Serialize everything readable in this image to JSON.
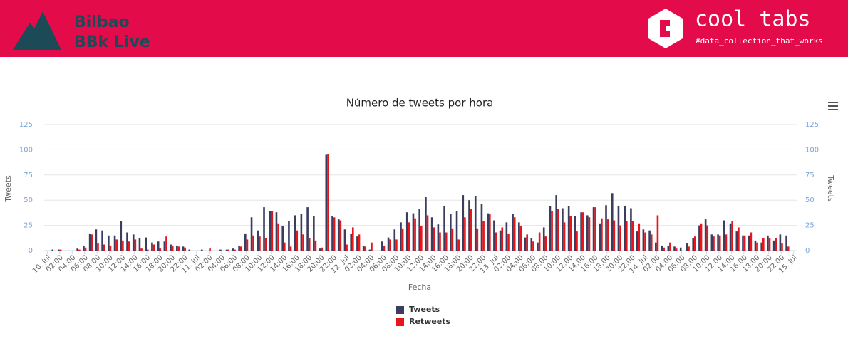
{
  "header": {
    "brand": [
      "Bilbao",
      "BBk Live"
    ],
    "product": "cool tabs",
    "tagline": "#data_collection_that_works"
  },
  "chart_data": {
    "type": "bar",
    "title": "Número de tweets por hora",
    "xlabel": "Fecha",
    "ylabel": "Tweets",
    "y2label": "Tweets",
    "categories": [
      "10. Jul",
      null,
      "02:00",
      null,
      "04:00",
      null,
      "06:00",
      null,
      "08:00",
      null,
      "10:00",
      null,
      "12:00",
      null,
      "14:00",
      null,
      "16:00",
      null,
      "18:00",
      null,
      "20:00",
      null,
      "22:00",
      null,
      "11. Jul",
      null,
      "02:00",
      null,
      "04:00",
      null,
      "06:00",
      null,
      "08:00",
      null,
      "10:00",
      null,
      "12:00",
      null,
      "14:00",
      null,
      "16:00",
      null,
      "18:00",
      null,
      "20:00",
      null,
      "22:00",
      null,
      "12. Jul",
      null,
      "02:00",
      null,
      "04:00",
      null,
      "06:00",
      null,
      "08:00",
      null,
      "10:00",
      null,
      "12:00",
      null,
      "14:00",
      null,
      "16:00",
      null,
      "18:00",
      null,
      "20:00",
      null,
      "22:00",
      null,
      "13. Jul",
      null,
      "02:00",
      null,
      "04:00",
      null,
      "06:00",
      null,
      "08:00",
      null,
      "10:00",
      null,
      "12:00",
      null,
      "14:00",
      null,
      "16:00",
      null,
      "18:00",
      null,
      "20:00",
      null,
      "22:00",
      null,
      "14. Jul",
      null,
      "02:00",
      null,
      "04:00",
      null,
      "06:00",
      null,
      "08:00",
      null,
      "10:00",
      null,
      "12:00",
      null,
      "14:00",
      null,
      "16:00",
      null,
      "18:00",
      null,
      "20:00",
      null,
      "22:00",
      null,
      "15. Jul"
    ],
    "series": [
      {
        "name": "Tweets",
        "color": "#3b3d5e",
        "values": [
          0,
          1,
          1,
          0,
          0,
          2,
          5,
          17,
          21,
          20,
          15,
          15,
          29,
          18,
          16,
          12,
          13,
          8,
          9,
          9,
          6,
          5,
          4,
          1,
          0,
          1,
          0,
          0,
          1,
          1,
          2,
          5,
          17,
          33,
          20,
          43,
          39,
          38,
          24,
          29,
          35,
          36,
          43,
          34,
          2,
          95,
          34,
          31,
          21,
          17,
          14,
          5,
          1,
          0,
          9,
          13,
          21,
          28,
          38,
          37,
          41,
          53,
          33,
          26,
          44,
          36,
          39,
          55,
          50,
          54,
          46,
          37,
          30,
          20,
          28,
          36,
          28,
          13,
          12,
          8,
          23,
          44,
          55,
          42,
          44,
          34,
          38,
          35,
          43,
          27,
          45,
          57,
          44,
          44,
          42,
          19,
          21,
          20,
          8,
          5,
          5,
          4,
          3,
          7,
          12,
          25,
          31,
          16,
          16,
          30,
          27,
          19,
          15,
          15,
          10,
          8,
          15,
          10,
          16,
          15,
          0
        ]
      },
      {
        "name": "Retweets",
        "color": "#e8161b",
        "values": [
          0,
          0,
          1,
          0,
          0,
          1,
          3,
          16,
          7,
          6,
          5,
          11,
          10,
          9,
          11,
          2,
          1,
          6,
          2,
          14,
          5,
          4,
          3,
          0,
          0,
          0,
          2,
          0,
          0,
          1,
          1,
          4,
          11,
          15,
          14,
          12,
          39,
          27,
          8,
          4,
          20,
          16,
          12,
          10,
          3,
          96,
          33,
          30,
          6,
          23,
          16,
          4,
          8,
          0,
          5,
          11,
          11,
          22,
          28,
          32,
          24,
          35,
          23,
          18,
          18,
          22,
          11,
          33,
          41,
          22,
          29,
          36,
          18,
          23,
          17,
          33,
          24,
          16,
          9,
          18,
          14,
          39,
          41,
          28,
          34,
          19,
          38,
          33,
          43,
          32,
          31,
          30,
          25,
          29,
          29,
          27,
          18,
          16,
          35,
          3,
          8,
          2,
          0,
          4,
          14,
          27,
          25,
          14,
          15,
          16,
          29,
          23,
          15,
          18,
          8,
          12,
          12,
          12,
          7,
          4,
          0
        ]
      }
    ],
    "ylim": [
      0,
      125
    ],
    "yticks": [
      0,
      25,
      50,
      75,
      100,
      125
    ],
    "y2lim": [
      0,
      125
    ],
    "y2ticks": [
      0,
      25,
      50,
      75,
      100,
      125
    ],
    "grid": true,
    "legend": "bottom"
  }
}
